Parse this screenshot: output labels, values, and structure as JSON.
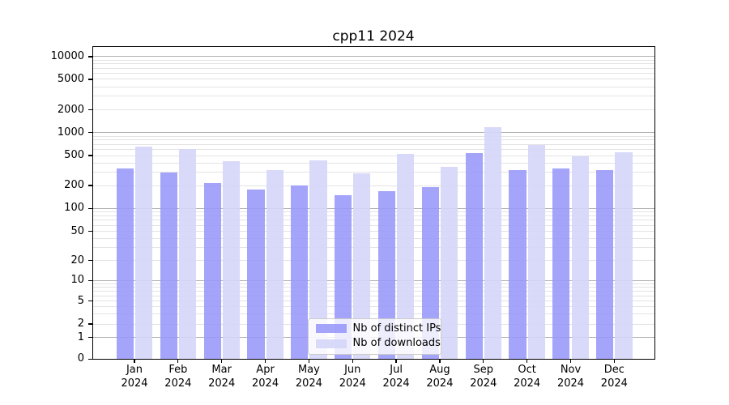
{
  "figure": {
    "title": "cpp11 2024"
  },
  "chart_data": {
    "type": "bar",
    "title": "cpp11 2024",
    "categories": [
      "Jan",
      "Feb",
      "Mar",
      "Apr",
      "May",
      "Jun",
      "Jul",
      "Aug",
      "Sep",
      "Oct",
      "Nov",
      "Dec"
    ],
    "category_year": "2024",
    "series": [
      {
        "name": "Nb of distinct IPs",
        "color": "#9797f9",
        "alpha": 0.88,
        "values": [
          335,
          295,
          215,
          175,
          200,
          150,
          170,
          190,
          540,
          320,
          340,
          320
        ]
      },
      {
        "name": "Nb of downloads",
        "color": "#d5d5fa",
        "alpha": 0.9,
        "values": [
          660,
          610,
          420,
          320,
          430,
          290,
          530,
          350,
          1170,
          690,
          490,
          550
        ]
      }
    ],
    "y_axis": {
      "scale": "symlog",
      "ticks": [
        0,
        1,
        2,
        5,
        10,
        20,
        50,
        100,
        200,
        500,
        1000,
        2000,
        5000,
        10000
      ],
      "ylim": [
        0,
        13500
      ],
      "grid": {
        "major_color": "#b0b0b0",
        "minor_color": "#e3e3e3"
      }
    },
    "x_axis": {
      "tick_label_lines": 2
    },
    "legend": {
      "location": "lower center",
      "frame_alpha": 0.8
    }
  }
}
